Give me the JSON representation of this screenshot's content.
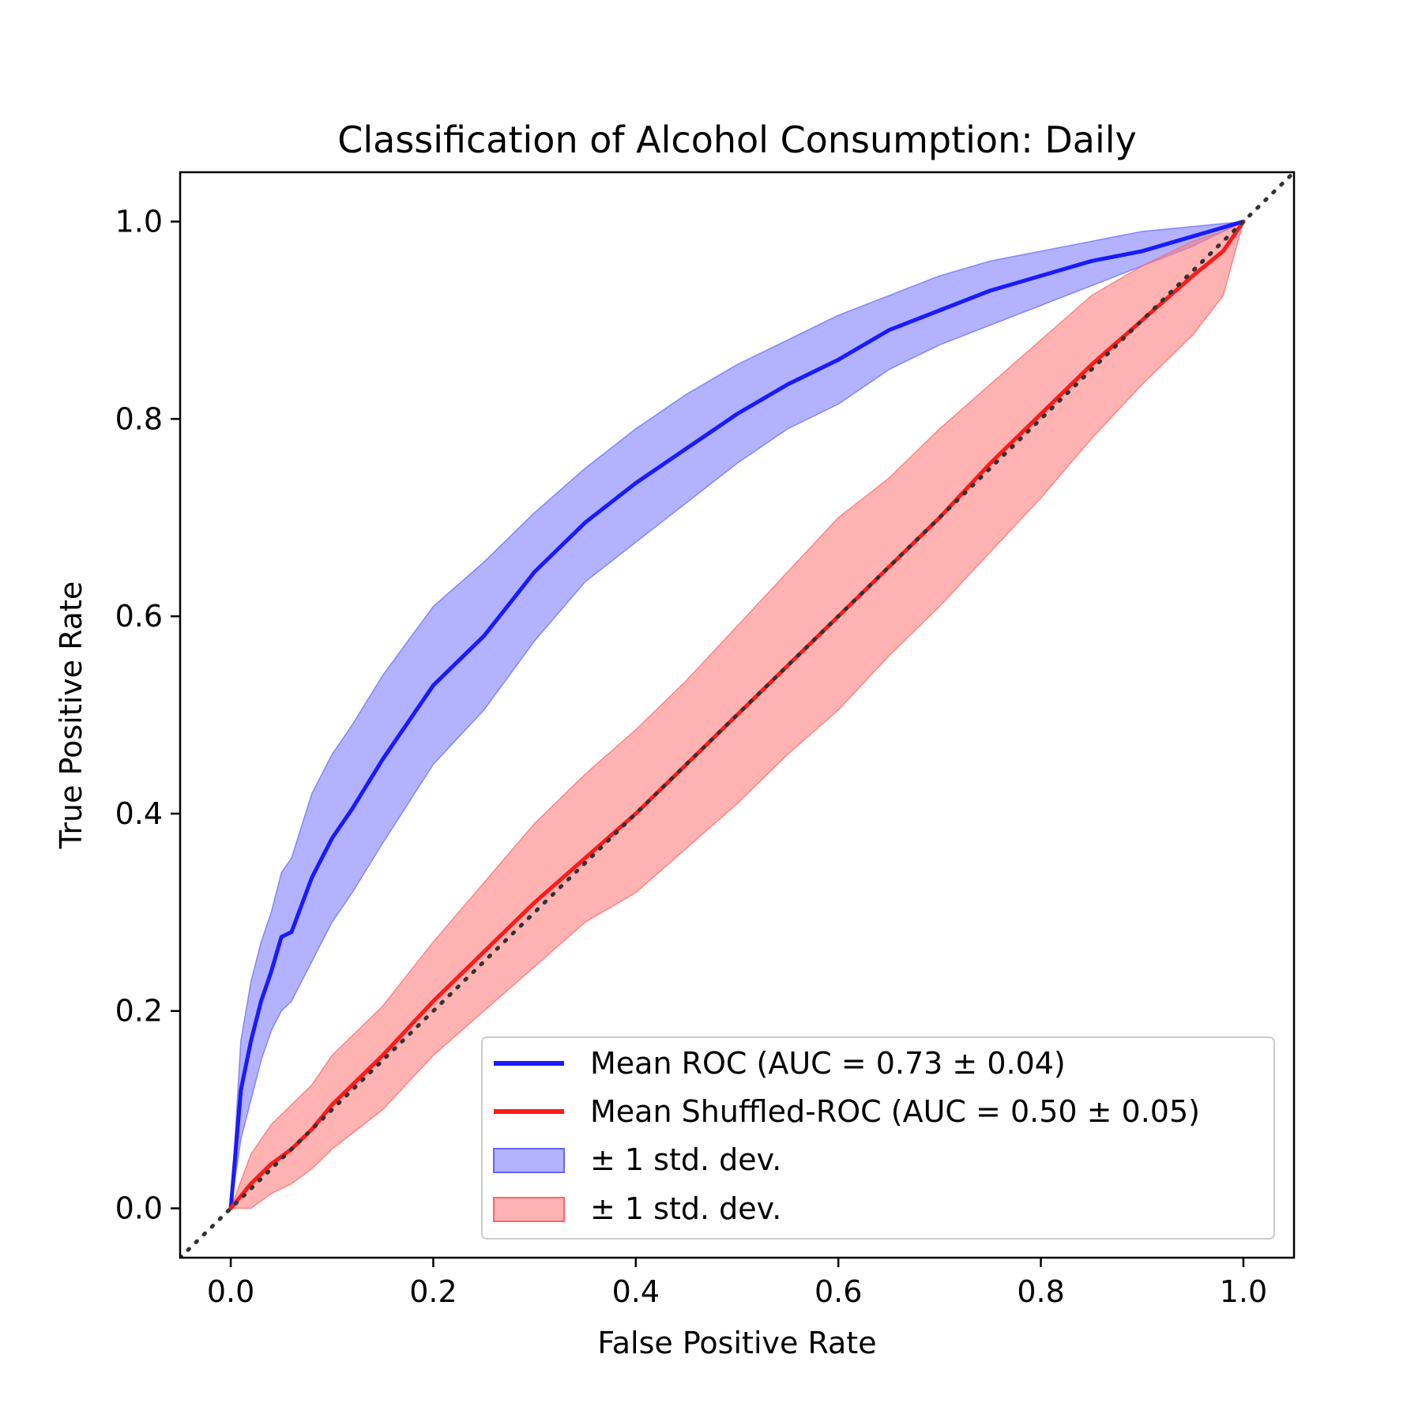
{
  "chart_data": {
    "type": "line",
    "title": "Classification of Alcohol Consumption: Daily",
    "xlabel": "False Positive Rate",
    "ylabel": "True Positive Rate",
    "xlim": [
      -0.05,
      1.05
    ],
    "ylim": [
      -0.05,
      1.05
    ],
    "xticks": [
      "0.0",
      "0.2",
      "0.4",
      "0.6",
      "0.8",
      "1.0"
    ],
    "yticks": [
      "0.0",
      "0.2",
      "0.4",
      "0.6",
      "0.8",
      "1.0"
    ],
    "grid": false,
    "legend_position": "lower-right",
    "series": [
      {
        "name": "Mean ROC (AUC = 0.73 ± 0.04)",
        "color": "#1a1aff",
        "x": [
          0.0,
          0.01,
          0.02,
          0.03,
          0.04,
          0.05,
          0.06,
          0.08,
          0.1,
          0.12,
          0.15,
          0.2,
          0.25,
          0.3,
          0.35,
          0.4,
          0.45,
          0.5,
          0.55,
          0.6,
          0.65,
          0.7,
          0.75,
          0.8,
          0.85,
          0.9,
          0.95,
          1.0
        ],
        "y": [
          0.0,
          0.12,
          0.17,
          0.21,
          0.24,
          0.275,
          0.28,
          0.335,
          0.375,
          0.405,
          0.455,
          0.53,
          0.58,
          0.645,
          0.695,
          0.735,
          0.77,
          0.805,
          0.835,
          0.86,
          0.89,
          0.91,
          0.93,
          0.945,
          0.96,
          0.97,
          0.985,
          1.0
        ]
      },
      {
        "name": "Mean Shuffled-ROC (AUC = 0.50 ± 0.05)",
        "color": "#ff1a1a",
        "x": [
          0.0,
          0.02,
          0.04,
          0.06,
          0.08,
          0.1,
          0.15,
          0.2,
          0.25,
          0.3,
          0.35,
          0.4,
          0.45,
          0.5,
          0.55,
          0.6,
          0.65,
          0.7,
          0.75,
          0.8,
          0.85,
          0.9,
          0.95,
          0.98,
          1.0
        ],
        "y": [
          0.0,
          0.025,
          0.045,
          0.06,
          0.08,
          0.105,
          0.155,
          0.21,
          0.26,
          0.31,
          0.355,
          0.4,
          0.45,
          0.5,
          0.55,
          0.6,
          0.65,
          0.7,
          0.755,
          0.805,
          0.855,
          0.9,
          0.945,
          0.97,
          1.0
        ]
      }
    ],
    "bands": [
      {
        "name": "± 1 std. dev.",
        "fill": "#7f7fff",
        "stroke": "#6464ff",
        "opacity": 0.6,
        "x": [
          0.0,
          0.01,
          0.02,
          0.03,
          0.04,
          0.05,
          0.06,
          0.08,
          0.1,
          0.12,
          0.15,
          0.2,
          0.25,
          0.3,
          0.35,
          0.4,
          0.45,
          0.5,
          0.55,
          0.6,
          0.65,
          0.7,
          0.75,
          0.8,
          0.85,
          0.9,
          0.95,
          1.0
        ],
        "upper": [
          0.0,
          0.17,
          0.23,
          0.27,
          0.3,
          0.34,
          0.355,
          0.42,
          0.46,
          0.49,
          0.54,
          0.61,
          0.655,
          0.705,
          0.75,
          0.79,
          0.825,
          0.855,
          0.88,
          0.905,
          0.925,
          0.945,
          0.96,
          0.97,
          0.98,
          0.99,
          0.995,
          1.0
        ],
        "lower": [
          0.0,
          0.07,
          0.11,
          0.15,
          0.18,
          0.2,
          0.21,
          0.25,
          0.29,
          0.32,
          0.37,
          0.45,
          0.505,
          0.575,
          0.635,
          0.675,
          0.715,
          0.755,
          0.79,
          0.815,
          0.85,
          0.875,
          0.895,
          0.915,
          0.935,
          0.955,
          0.975,
          1.0
        ]
      },
      {
        "name": "± 1 std. dev.",
        "fill": "#ff7f7f",
        "stroke": "#ff6464",
        "opacity": 0.6,
        "x": [
          0.0,
          0.02,
          0.04,
          0.06,
          0.08,
          0.1,
          0.15,
          0.2,
          0.25,
          0.3,
          0.35,
          0.4,
          0.45,
          0.5,
          0.55,
          0.6,
          0.65,
          0.7,
          0.75,
          0.8,
          0.85,
          0.9,
          0.95,
          0.98,
          1.0
        ],
        "upper": [
          0.0,
          0.055,
          0.085,
          0.105,
          0.125,
          0.155,
          0.205,
          0.27,
          0.33,
          0.39,
          0.44,
          0.485,
          0.535,
          0.59,
          0.645,
          0.7,
          0.74,
          0.79,
          0.835,
          0.88,
          0.925,
          0.955,
          0.98,
          0.99,
          1.0
        ],
        "lower": [
          0.0,
          0.0,
          0.015,
          0.025,
          0.04,
          0.06,
          0.1,
          0.155,
          0.2,
          0.245,
          0.29,
          0.32,
          0.365,
          0.41,
          0.46,
          0.505,
          0.56,
          0.61,
          0.665,
          0.72,
          0.78,
          0.835,
          0.885,
          0.925,
          1.0
        ]
      }
    ],
    "reference_line": {
      "x": [
        -0.05,
        1.05
      ],
      "y": [
        -0.05,
        1.05
      ],
      "color": "#333333",
      "style": "dotted"
    }
  }
}
